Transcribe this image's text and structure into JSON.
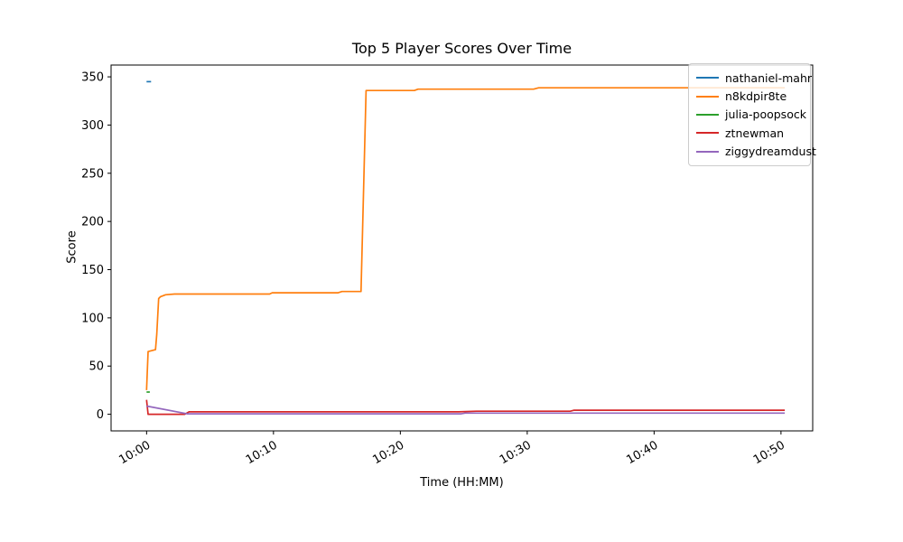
{
  "figure": {
    "title": "Top 5 Player Scores Over Time",
    "xlabel": "Time (HH:MM)",
    "ylabel": "Score"
  },
  "chart_data": {
    "type": "line",
    "title": "Top 5 Player Scores Over Time",
    "xlabel": "Time (HH:MM)",
    "ylabel": "Score",
    "grid": false,
    "legend_position": "upper right",
    "x_encoding": "minutes after 10:00",
    "xlim_minutes": [
      -2.8,
      52.5
    ],
    "ylim": [
      -17.25,
      362.25
    ],
    "xticks": {
      "minutes": [
        0,
        10,
        20,
        30,
        40,
        50
      ],
      "labels": [
        "10:00",
        "10:10",
        "10:20",
        "10:30",
        "10:40",
        "10:50"
      ]
    },
    "yticks": [
      0,
      50,
      100,
      150,
      200,
      250,
      300,
      350
    ],
    "series": [
      {
        "name": "nathaniel-mahr",
        "color": "#1f77b4",
        "points": [
          [
            0,
            345
          ],
          [
            0.35,
            345
          ]
        ]
      },
      {
        "name": "n8kdpir8te",
        "color": "#ff7f0e",
        "points": [
          [
            0,
            25
          ],
          [
            0.12,
            65
          ],
          [
            0.7,
            67
          ],
          [
            0.8,
            83
          ],
          [
            0.95,
            120
          ],
          [
            1.1,
            122
          ],
          [
            1.5,
            124
          ],
          [
            2.2,
            124.7
          ],
          [
            9.7,
            124.7
          ],
          [
            9.9,
            126
          ],
          [
            15.1,
            126
          ],
          [
            15.4,
            127.3
          ],
          [
            16.9,
            127.3
          ],
          [
            17.3,
            335.8
          ],
          [
            21.1,
            335.8
          ],
          [
            21.4,
            337.2
          ],
          [
            30.5,
            337.2
          ],
          [
            30.9,
            338.6
          ],
          [
            50.3,
            338.6
          ]
        ]
      },
      {
        "name": "julia-poopsock",
        "color": "#2ca02c",
        "points": [
          [
            0,
            23
          ],
          [
            0.25,
            23
          ]
        ]
      },
      {
        "name": "ztnewman",
        "color": "#d62728",
        "points": [
          [
            0,
            15
          ],
          [
            0.12,
            0
          ],
          [
            3.0,
            0
          ],
          [
            3.35,
            2.5
          ],
          [
            24.6,
            2.5
          ],
          [
            26.0,
            3.2
          ],
          [
            33.4,
            3.2
          ],
          [
            33.7,
            4.2
          ],
          [
            50.3,
            4.2
          ]
        ]
      },
      {
        "name": "ziggydreamdust",
        "color": "#9467bd",
        "points": [
          [
            0,
            8.5
          ],
          [
            3.2,
            0.5
          ],
          [
            24.8,
            0.5
          ],
          [
            25.1,
            1.2
          ],
          [
            50.3,
            1.2
          ]
        ]
      }
    ]
  }
}
